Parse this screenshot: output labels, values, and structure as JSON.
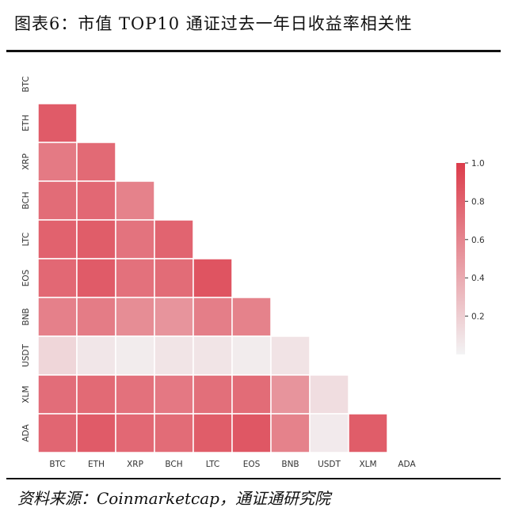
{
  "title": "图表6：市值 TOP10 通证过去一年日收益率相关性",
  "source": "资料来源：Coinmarketcap，通证通研究院",
  "chart_data": {
    "type": "heatmap",
    "mask": "lower-triangle",
    "labels": [
      "BTC",
      "ETH",
      "XRP",
      "BCH",
      "LTC",
      "EOS",
      "BNB",
      "USDT",
      "XLM",
      "ADA"
    ],
    "matrix": [
      [
        null,
        null,
        null,
        null,
        null,
        null,
        null,
        null,
        null,
        null
      ],
      [
        0.83,
        null,
        null,
        null,
        null,
        null,
        null,
        null,
        null,
        null
      ],
      [
        0.66,
        0.75,
        null,
        null,
        null,
        null,
        null,
        null,
        null,
        null
      ],
      [
        0.74,
        0.76,
        0.62,
        null,
        null,
        null,
        null,
        null,
        null,
        null
      ],
      [
        0.79,
        0.82,
        0.7,
        0.78,
        null,
        null,
        null,
        null,
        null,
        null
      ],
      [
        0.76,
        0.83,
        0.71,
        0.74,
        0.87,
        null,
        null,
        null,
        null,
        null
      ],
      [
        0.63,
        0.65,
        0.56,
        0.52,
        0.64,
        0.62,
        null,
        null,
        null,
        null
      ],
      [
        0.16,
        0.07,
        0.04,
        0.08,
        0.08,
        0.04,
        0.09,
        null,
        null,
        null
      ],
      [
        0.73,
        0.75,
        0.71,
        0.67,
        0.72,
        0.74,
        0.52,
        0.12,
        null,
        null
      ],
      [
        0.77,
        0.83,
        0.76,
        0.74,
        0.82,
        0.85,
        0.62,
        0.05,
        0.82,
        null
      ]
    ],
    "colorbar": {
      "min": 0.0,
      "max": 1.0,
      "ticks": [
        0.2,
        0.4,
        0.6,
        0.8,
        1.0
      ],
      "low_color": "#f3f3f4",
      "high_color": "#dc3c4b"
    },
    "grid": false
  }
}
